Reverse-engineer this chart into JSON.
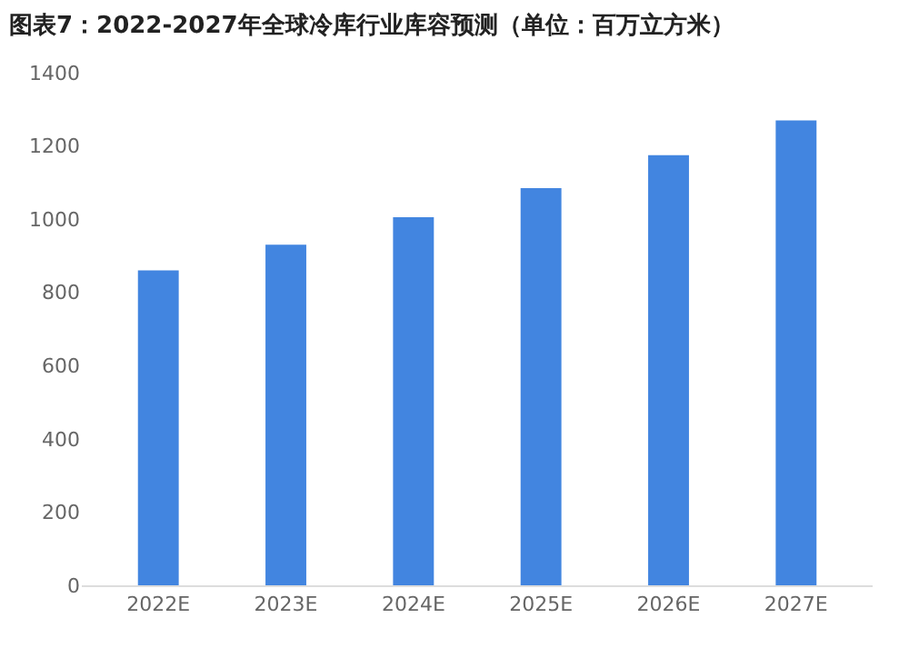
{
  "chart_data": {
    "type": "bar",
    "title": "图表7：2022-2027年全球冷库行业库容预测（单位：百万立方米）",
    "categories": [
      "2022E",
      "2023E",
      "2024E",
      "2025E",
      "2026E",
      "2027E"
    ],
    "values": [
      860,
      930,
      1005,
      1085,
      1175,
      1270
    ],
    "color": "#4285e0",
    "ylim": [
      0,
      1400
    ],
    "yticks": [
      0,
      200,
      400,
      600,
      800,
      1000,
      1200,
      1400
    ]
  }
}
